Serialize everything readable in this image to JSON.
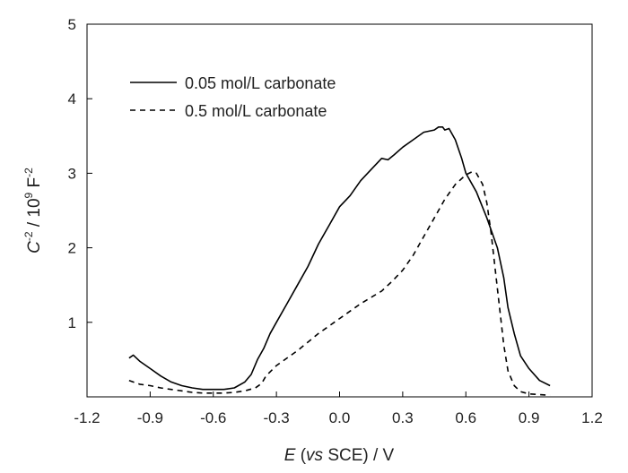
{
  "chart_data": {
    "type": "line",
    "xlabel": {
      "symbol": "E",
      "open": " (",
      "italic": "vs",
      "rest": " SCE) / V"
    },
    "ylabel": {
      "c": "C",
      "sup1": "-2",
      "mid": " / 10",
      "sup2": "9",
      "unit": " F",
      "sup3": "-2"
    },
    "xlim": [
      -1.2,
      1.2
    ],
    "ylim": [
      0,
      5
    ],
    "xticks": [
      -1.2,
      -0.9,
      -0.6,
      -0.3,
      0.0,
      0.3,
      0.6,
      0.9,
      1.2
    ],
    "xtick_labels": [
      "-1.2",
      "-0.9",
      "-0.6",
      "-0.3",
      "0.0",
      "0.3",
      "0.6",
      "0.9",
      "1.2"
    ],
    "yticks": [
      1,
      2,
      3,
      4,
      5
    ],
    "ytick_labels": [
      "1",
      "2",
      "3",
      "4",
      "5"
    ],
    "grid": false,
    "legend_position": "top-left",
    "series": [
      {
        "name": "0.05 mol/L carbonate",
        "style": "solid",
        "color": "#000000",
        "x": [
          -1.0,
          -0.98,
          -0.95,
          -0.9,
          -0.85,
          -0.8,
          -0.75,
          -0.7,
          -0.65,
          -0.6,
          -0.55,
          -0.5,
          -0.45,
          -0.42,
          -0.39,
          -0.36,
          -0.33,
          -0.3,
          -0.25,
          -0.2,
          -0.15,
          -0.1,
          -0.05,
          0.0,
          0.05,
          0.1,
          0.15,
          0.2,
          0.23,
          0.26,
          0.3,
          0.35,
          0.4,
          0.45,
          0.47,
          0.49,
          0.5,
          0.52,
          0.55,
          0.58,
          0.6,
          0.65,
          0.7,
          0.75,
          0.78,
          0.8,
          0.83,
          0.86,
          0.9,
          0.95,
          1.0
        ],
        "y": [
          0.52,
          0.56,
          0.48,
          0.38,
          0.28,
          0.2,
          0.15,
          0.12,
          0.1,
          0.1,
          0.1,
          0.12,
          0.2,
          0.3,
          0.5,
          0.65,
          0.85,
          1.0,
          1.25,
          1.5,
          1.75,
          2.05,
          2.3,
          2.55,
          2.7,
          2.9,
          3.05,
          3.2,
          3.18,
          3.25,
          3.35,
          3.45,
          3.55,
          3.58,
          3.62,
          3.62,
          3.58,
          3.6,
          3.45,
          3.2,
          3.0,
          2.75,
          2.4,
          2.0,
          1.6,
          1.2,
          0.85,
          0.55,
          0.38,
          0.22,
          0.15
        ]
      },
      {
        "name": "0.5 mol/L carbonate",
        "style": "dashed",
        "color": "#000000",
        "x": [
          -1.0,
          -0.95,
          -0.9,
          -0.85,
          -0.8,
          -0.75,
          -0.7,
          -0.65,
          -0.6,
          -0.55,
          -0.5,
          -0.45,
          -0.4,
          -0.37,
          -0.35,
          -0.3,
          -0.2,
          -0.1,
          0.0,
          0.1,
          0.2,
          0.25,
          0.3,
          0.35,
          0.4,
          0.45,
          0.5,
          0.55,
          0.6,
          0.63,
          0.65,
          0.68,
          0.7,
          0.72,
          0.74,
          0.76,
          0.78,
          0.8,
          0.83,
          0.86,
          0.9,
          0.95,
          1.0
        ],
        "y": [
          0.22,
          0.17,
          0.15,
          0.12,
          0.1,
          0.08,
          0.06,
          0.05,
          0.05,
          0.05,
          0.06,
          0.08,
          0.12,
          0.18,
          0.28,
          0.42,
          0.62,
          0.85,
          1.05,
          1.25,
          1.42,
          1.55,
          1.7,
          1.9,
          2.15,
          2.4,
          2.65,
          2.85,
          2.98,
          3.02,
          3.0,
          2.85,
          2.6,
          2.2,
          1.7,
          1.2,
          0.7,
          0.35,
          0.15,
          0.07,
          0.04,
          0.03,
          0.02
        ]
      }
    ]
  }
}
